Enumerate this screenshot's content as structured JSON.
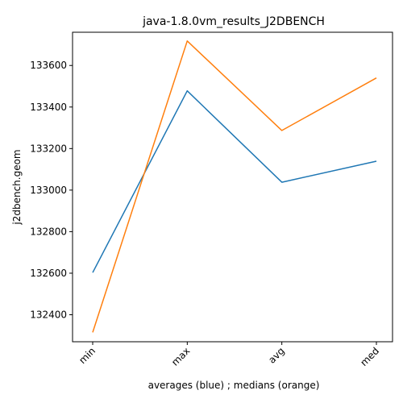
{
  "chart_data": {
    "type": "line",
    "title": "java-1.8.0vm_results_J2DBENCH",
    "xlabel": "averages (blue) ; medians (orange)",
    "ylabel": "j2dbench.geom",
    "categories": [
      "min",
      "max",
      "avg",
      "med"
    ],
    "series": [
      {
        "color": "#1f77b4",
        "values": [
          132603,
          133478,
          133038,
          133139
        ]
      },
      {
        "color": "#ff7f0e",
        "values": [
          132315,
          133718,
          133287,
          133540
        ]
      }
    ],
    "ylim": [
      132270,
      133760
    ],
    "yticks": [
      132400,
      132600,
      132800,
      133000,
      133200,
      133400,
      133600
    ],
    "ytick_labels": [
      "132400",
      "132600",
      "132800",
      "133000",
      "133200",
      "133400",
      "133600"
    ],
    "grid": false,
    "legend": "none"
  }
}
